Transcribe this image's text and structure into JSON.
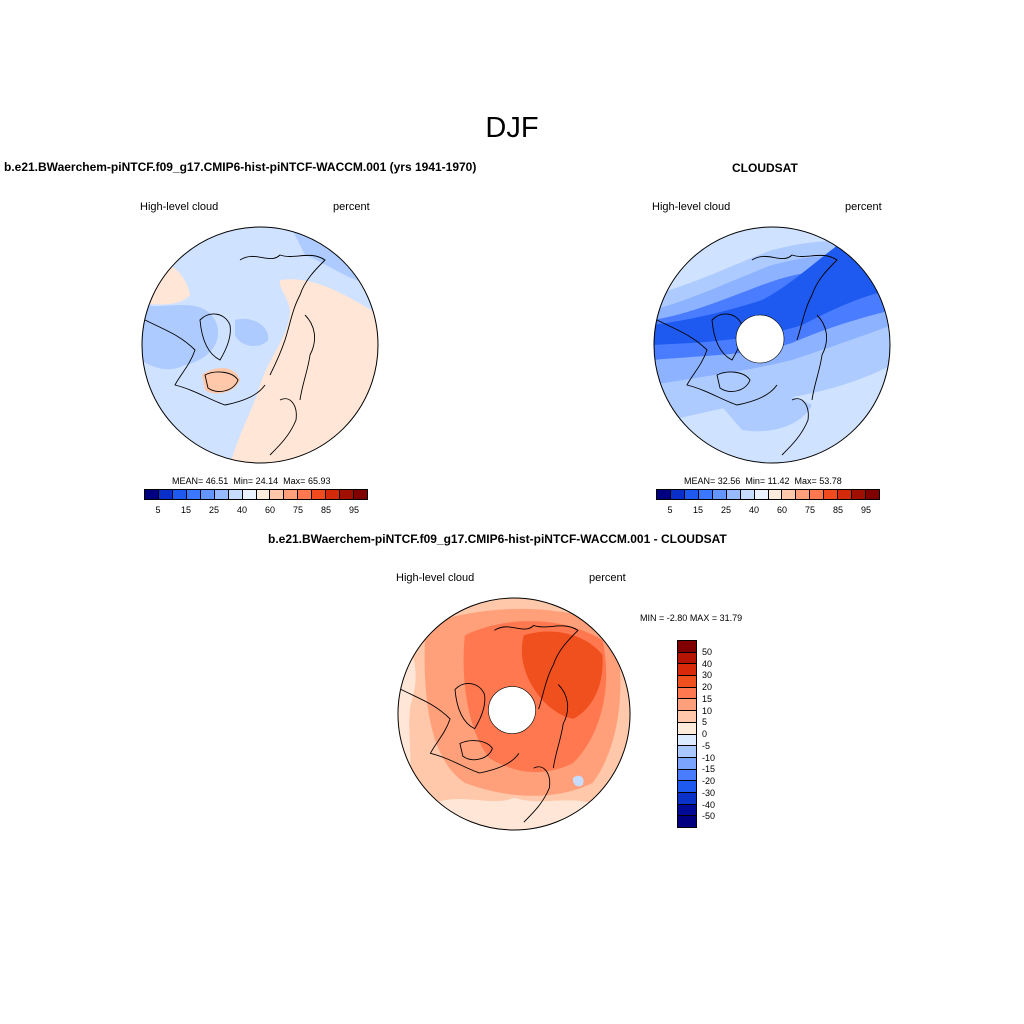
{
  "title": "DJF",
  "panels": {
    "model": {
      "title": "b.e21.BWaerchem-piNTCF.f09_g17.CMIP6-hist-piNTCF-WACCM.001 (yrs 1941-1970)",
      "left_label": "High-level cloud",
      "right_label": "percent",
      "stats": {
        "mean_label": "MEAN=",
        "mean": "46.51",
        "min_label": "Min=",
        "min": "24.14",
        "max_label": "Max=",
        "max": "65.93"
      }
    },
    "obs": {
      "title": "CLOUDSAT",
      "left_label": "High-level cloud",
      "right_label": "percent",
      "stats": {
        "mean_label": "MEAN=",
        "mean": "32.56",
        "min_label": "Min=",
        "min": "11.42",
        "max_label": "Max=",
        "max": "53.78"
      }
    },
    "diff": {
      "title": "b.e21.BWaerchem-piNTCF.f09_g17.CMIP6-hist-piNTCF-WACCM.001 - CLOUDSAT",
      "left_label": "High-level cloud",
      "right_label": "percent",
      "stats": {
        "min_label": "MIN =",
        "min": "-2.80",
        "max_label": "MAX =",
        "max": "31.79"
      }
    }
  },
  "colorbar_abs": {
    "tick_labels": [
      "5",
      "15",
      "25",
      "40",
      "60",
      "75",
      "85",
      "95"
    ],
    "colors": [
      "#000080",
      "#0A2FC8",
      "#1E5AF0",
      "#3C78FF",
      "#6496FF",
      "#96B9FF",
      "#C8DCFF",
      "#EAF2FF",
      "#FFECDC",
      "#FFC8AA",
      "#FFA07A",
      "#FF7850",
      "#F04A1E",
      "#D22A0A",
      "#A01000",
      "#800000"
    ]
  },
  "colorbar_diff": {
    "tick_labels": [
      "50",
      "40",
      "30",
      "20",
      "15",
      "10",
      "5",
      "0",
      "-5",
      "-10",
      "-15",
      "-20",
      "-30",
      "-40",
      "-50"
    ],
    "colors": [
      "#800000",
      "#B41400",
      "#D82A0A",
      "#F0501E",
      "#FF7850",
      "#FFA07A",
      "#FFC8AA",
      "#FFEBDC",
      "#DCEBFF",
      "#A8C8FF",
      "#7BA4FF",
      "#4A7CFF",
      "#1E5AF0",
      "#0A32C8",
      "#000A96",
      "#000080"
    ]
  },
  "map_colors": {
    "model": {
      "base": "#CFE2FF",
      "mid": "#AECBFF",
      "warm": "#FFE6D6",
      "warmer": "#FFC8AA",
      "deep": "#8DB2FF"
    },
    "obs": {
      "base": "#CFE2FF",
      "light": "#AECBFF",
      "mid": "#8DB2FF",
      "strong": "#4A7CFF",
      "deep": "#1E5AF0",
      "pale": "#FFE6D6"
    },
    "diff": {
      "base": "#FFC8AA",
      "pale": "#FFE6D6",
      "mid": "#FFA07A",
      "strong": "#FF7850",
      "deep": "#F0501E",
      "cool": "#C8DCFF"
    }
  }
}
